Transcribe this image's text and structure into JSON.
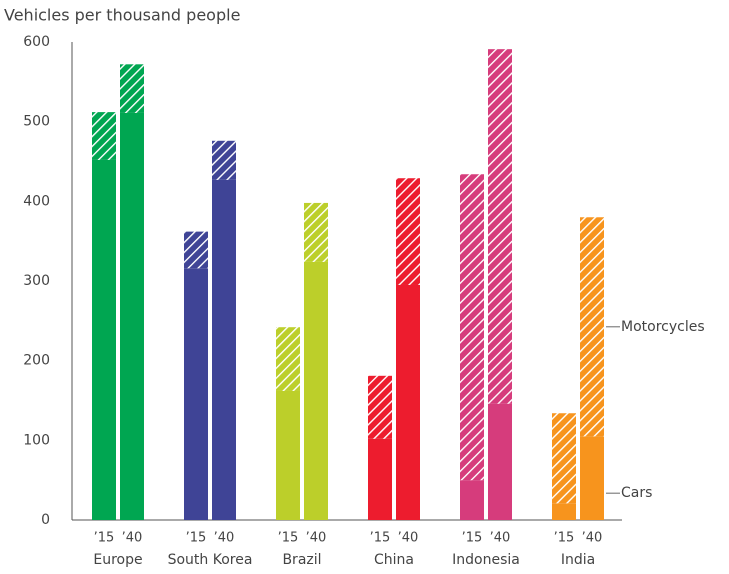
{
  "chart_data": {
    "type": "stacked-bar",
    "y_label": "Vehicles per thousand people",
    "groups": [
      "Europe",
      "South Korea",
      "Brazil",
      "China",
      "Indonesia",
      "India"
    ],
    "periods": [
      "’15",
      "’40"
    ],
    "group_colors": [
      "#00a651",
      "#3f4496",
      "#bccf2a",
      "#ed1c2e",
      "#d63c7c",
      "#f7941d"
    ],
    "series": [
      {
        "name": "Cars",
        "values": [
          452,
          511,
          316,
          427,
          162,
          324,
          102,
          295,
          50,
          146,
          21,
          105
        ]
      },
      {
        "name": "Motorcycles",
        "values": [
          60,
          61,
          46,
          49,
          80,
          74,
          79,
          134,
          384,
          445,
          113,
          275
        ]
      }
    ],
    "ylim": [
      0,
      600
    ],
    "yticks": [
      0,
      100,
      200,
      300,
      400,
      500,
      600
    ]
  }
}
